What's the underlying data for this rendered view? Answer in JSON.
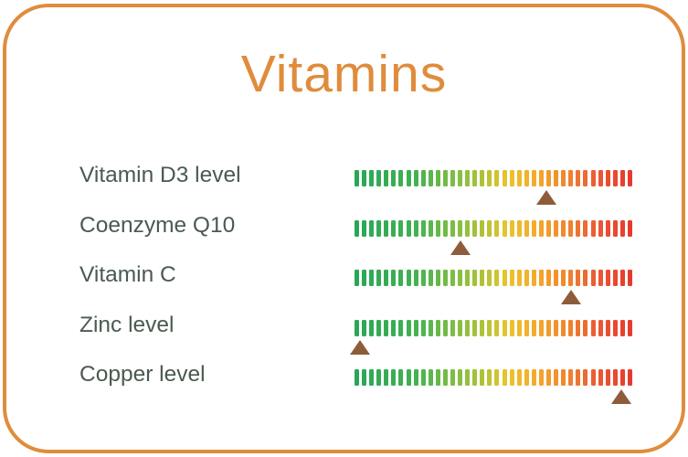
{
  "card": {
    "title": "Vitamins",
    "accent_color": "#E08C3C",
    "background_color": "#FFFFFF"
  },
  "chart_data": {
    "type": "bar",
    "subtype": "dashed-gradient-level-scales-with-markers",
    "title": "Vitamins",
    "categories": [
      "Vitamin D3 level",
      "Coenzyme Q10",
      "Vitamin C",
      "Zinc level",
      "Copper level"
    ],
    "series": [
      {
        "name": "marker_position_pct",
        "values": [
          69,
          38,
          78,
          2,
          96
        ]
      }
    ],
    "scale": {
      "range_pct": [
        0,
        100
      ],
      "ticks_per_bar": 38,
      "low_end_color": "#29A757",
      "high_end_color": "#E73A2E"
    },
    "gradient_stops": [
      {
        "pos": 0.0,
        "color": "#29A757"
      },
      {
        "pos": 0.2,
        "color": "#3FB152"
      },
      {
        "pos": 0.36,
        "color": "#7FBE44"
      },
      {
        "pos": 0.47,
        "color": "#B2C237"
      },
      {
        "pos": 0.55,
        "color": "#EAC42D"
      },
      {
        "pos": 0.66,
        "color": "#F5A82B"
      },
      {
        "pos": 0.78,
        "color": "#F0822F"
      },
      {
        "pos": 0.88,
        "color": "#EB5833"
      },
      {
        "pos": 1.0,
        "color": "#E73A2E"
      }
    ],
    "marker_color": "#8E5C3B",
    "label_color": "#4A5A50",
    "legend": "none",
    "grid": false,
    "xlabel": "",
    "ylabel": ""
  }
}
